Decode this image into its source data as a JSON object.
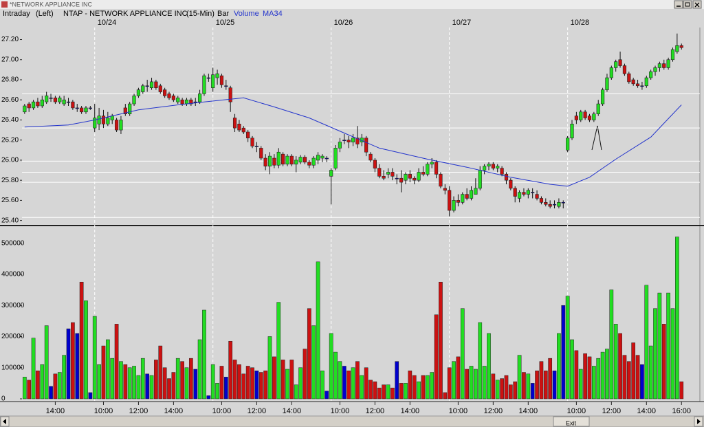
{
  "window_title": "*NETWORK APPLIANCE INC",
  "scrollbar_label": "Exit",
  "chart_data": [
    {
      "type": "candlestick",
      "label": "Intraday",
      "side": "(Left)",
      "title": "NTAP - NETWORK APPLIANCE INC",
      "interval": "(15-Min)",
      "style": "Bar",
      "up_color": "#22dd22",
      "down_color": "#cc1111",
      "flat_color": "#0000cc",
      "xlim": [
        -0.6,
        154.2
      ],
      "ylim": [
        25.37,
        27.32
      ],
      "yticks": [
        {
          "value": 25.4,
          "label": "25.40"
        },
        {
          "value": 25.6,
          "label": "25.60"
        },
        {
          "value": 25.8,
          "label": "25.80"
        },
        {
          "value": 26.0,
          "label": "26.00"
        },
        {
          "value": 26.2,
          "label": "26.20"
        },
        {
          "value": 26.4,
          "label": "26.40"
        },
        {
          "value": 26.6,
          "label": "26.60"
        },
        {
          "value": 26.8,
          "label": "26.80"
        },
        {
          "value": 27.0,
          "label": "27.00"
        },
        {
          "value": 27.2,
          "label": "27.20"
        }
      ],
      "levels": [
        26.66,
        26.32,
        25.99,
        25.88,
        25.78,
        25.43
      ],
      "level_color": "#ffffff",
      "sessions": [
        {
          "value": 16,
          "label": "10/24"
        },
        {
          "value": 43,
          "label": "10/25"
        },
        {
          "value": 70,
          "label": "10/26"
        },
        {
          "value": 97,
          "label": "10/27"
        },
        {
          "value": 124,
          "label": "10/28"
        }
      ],
      "open": [
        26.48,
        26.56,
        26.52,
        26.58,
        26.54,
        26.58,
        26.62,
        26.62,
        26.58,
        26.56,
        26.58,
        26.58,
        26.52,
        26.52,
        26.48,
        26.52,
        26.32,
        26.36,
        26.44,
        26.36,
        26.4,
        26.4,
        26.3,
        26.52,
        26.46,
        26.56,
        26.64,
        26.68,
        26.74,
        26.72,
        26.78,
        26.74,
        26.7,
        26.66,
        26.64,
        26.58,
        26.6,
        26.56,
        26.6,
        26.58,
        26.58,
        26.66,
        26.82,
        26.72,
        26.82,
        26.84,
        26.74,
        26.72,
        26.42,
        26.36,
        26.32,
        26.28,
        26.22,
        26.14,
        26.12,
        26.02,
        25.94,
        26.02,
        25.95,
        26.06,
        25.96,
        26.04,
        25.96,
        25.98,
        26.03,
        25.98,
        25.95,
        26.0,
        26.02,
        26.02,
        25.84,
        25.92,
        26.12,
        26.2,
        26.2,
        26.18,
        26.22,
        26.18,
        26.22,
        26.06,
        26.0,
        25.92,
        25.84,
        25.86,
        25.88,
        25.82,
        25.82,
        25.8,
        25.86,
        25.82,
        25.8,
        25.88,
        25.86,
        25.96,
        25.98,
        25.86,
        25.72,
        25.7,
        25.5,
        25.6,
        25.58,
        25.66,
        25.62,
        25.66,
        25.72,
        25.9,
        25.94,
        25.96,
        25.92,
        25.92,
        25.86,
        25.8,
        25.72,
        25.62,
        25.68,
        25.66,
        25.68,
        25.66,
        25.62,
        25.58,
        25.56,
        25.56,
        25.54,
        25.58,
        26.1,
        26.22,
        26.44,
        26.4,
        26.48,
        26.44,
        26.4,
        26.46,
        26.56,
        26.7,
        26.82,
        26.92,
        27.0,
        26.94,
        26.86,
        26.8,
        26.76,
        26.74,
        26.74,
        26.82,
        26.88,
        26.92,
        26.96,
        26.92,
        27.0,
        27.08,
        27.14
      ],
      "high": [
        26.56,
        26.58,
        26.6,
        26.62,
        26.64,
        26.68,
        26.66,
        26.64,
        26.64,
        26.64,
        26.62,
        26.6,
        26.56,
        26.54,
        26.54,
        26.54,
        26.56,
        26.52,
        26.5,
        26.48,
        26.46,
        26.42,
        26.44,
        26.56,
        26.58,
        26.66,
        26.72,
        26.76,
        26.8,
        26.82,
        26.8,
        26.76,
        26.72,
        26.68,
        26.66,
        26.64,
        26.62,
        26.62,
        26.62,
        26.62,
        26.7,
        26.86,
        26.86,
        26.92,
        26.9,
        26.86,
        26.8,
        26.74,
        26.46,
        26.4,
        26.34,
        26.3,
        26.24,
        26.18,
        26.14,
        26.06,
        26.08,
        26.06,
        26.12,
        26.08,
        26.06,
        26.06,
        26.04,
        26.05,
        26.05,
        26.0,
        26.04,
        26.08,
        26.06,
        26.04,
        25.92,
        26.15,
        26.22,
        26.26,
        26.24,
        26.26,
        26.34,
        26.26,
        26.24,
        26.08,
        26.02,
        25.96,
        25.9,
        25.92,
        25.92,
        25.86,
        25.9,
        25.88,
        25.9,
        25.84,
        25.92,
        25.94,
        25.98,
        26.02,
        26.0,
        25.88,
        25.76,
        25.74,
        25.64,
        25.66,
        25.68,
        25.72,
        25.74,
        25.82,
        25.94,
        25.96,
        25.98,
        25.98,
        25.96,
        25.94,
        25.88,
        25.82,
        25.74,
        25.7,
        25.72,
        25.72,
        25.72,
        25.7,
        25.64,
        25.62,
        25.6,
        25.6,
        25.62,
        25.6,
        26.24,
        26.4,
        26.48,
        26.5,
        26.5,
        26.46,
        26.48,
        26.6,
        26.72,
        26.86,
        26.94,
        27.0,
        27.08,
        26.96,
        26.88,
        26.82,
        26.8,
        26.78,
        26.84,
        26.9,
        26.94,
        26.98,
        27.0,
        27.02,
        27.12,
        27.26,
        27.16
      ],
      "low": [
        26.46,
        26.48,
        26.5,
        26.52,
        26.52,
        26.56,
        26.58,
        26.56,
        26.56,
        26.54,
        26.54,
        26.5,
        26.48,
        26.46,
        26.46,
        26.5,
        26.28,
        26.3,
        26.32,
        26.34,
        26.36,
        26.28,
        26.26,
        26.44,
        26.44,
        26.54,
        26.62,
        26.66,
        26.68,
        26.7,
        26.7,
        26.66,
        26.62,
        26.6,
        26.58,
        26.56,
        26.54,
        26.54,
        26.54,
        26.54,
        26.56,
        26.64,
        26.78,
        26.68,
        26.75,
        26.72,
        26.7,
        26.48,
        26.28,
        26.28,
        26.26,
        26.18,
        26.12,
        26.08,
        26.0,
        25.9,
        25.86,
        25.92,
        25.92,
        25.94,
        25.94,
        25.94,
        25.88,
        25.96,
        25.96,
        25.92,
        25.92,
        25.96,
        25.98,
        25.98,
        25.56,
        25.9,
        26.08,
        26.16,
        26.12,
        26.14,
        26.12,
        26.14,
        26.04,
        25.98,
        25.88,
        25.82,
        25.8,
        25.82,
        25.8,
        25.76,
        25.68,
        25.76,
        25.78,
        25.76,
        25.78,
        25.84,
        25.84,
        25.92,
        25.82,
        25.72,
        25.66,
        25.44,
        25.48,
        25.54,
        25.56,
        25.6,
        25.6,
        25.66,
        25.7,
        25.86,
        25.9,
        25.9,
        25.88,
        25.84,
        25.76,
        25.7,
        25.58,
        25.58,
        25.64,
        25.62,
        25.62,
        25.6,
        25.56,
        25.54,
        25.52,
        25.52,
        25.52,
        25.52,
        26.08,
        26.2,
        26.36,
        26.38,
        26.4,
        26.38,
        26.38,
        26.44,
        26.54,
        26.68,
        26.8,
        26.88,
        26.92,
        26.84,
        26.76,
        26.74,
        26.72,
        26.7,
        26.72,
        26.8,
        26.84,
        26.88,
        26.9,
        26.9,
        26.98,
        27.06,
        27.1
      ],
      "close": [
        26.54,
        26.52,
        26.58,
        26.54,
        26.6,
        26.64,
        26.62,
        26.58,
        26.62,
        26.6,
        26.58,
        26.52,
        26.52,
        26.48,
        26.52,
        26.52,
        26.42,
        26.44,
        26.36,
        26.42,
        26.44,
        26.3,
        26.4,
        26.46,
        26.56,
        26.64,
        26.7,
        26.74,
        26.74,
        26.78,
        26.72,
        26.68,
        26.64,
        26.62,
        26.6,
        26.62,
        26.56,
        26.6,
        26.56,
        26.58,
        26.66,
        26.84,
        26.82,
        26.85,
        26.86,
        26.75,
        26.74,
        26.58,
        26.32,
        26.3,
        26.28,
        26.22,
        26.14,
        26.14,
        26.02,
        25.94,
        26.04,
        25.95,
        26.08,
        25.96,
        26.04,
        25.96,
        26.0,
        26.03,
        25.98,
        25.95,
        26.02,
        26.05,
        26.04,
        26.02,
        25.9,
        26.12,
        26.18,
        26.2,
        26.18,
        26.22,
        26.16,
        26.22,
        26.08,
        26.0,
        25.92,
        25.84,
        25.82,
        25.88,
        25.84,
        25.82,
        25.78,
        25.86,
        25.82,
        25.8,
        25.88,
        25.86,
        25.96,
        25.98,
        25.86,
        25.74,
        25.7,
        25.5,
        25.6,
        25.58,
        25.66,
        25.62,
        25.7,
        25.72,
        25.9,
        25.94,
        25.96,
        25.92,
        25.94,
        25.86,
        25.8,
        25.72,
        25.64,
        25.68,
        25.66,
        25.7,
        25.68,
        25.62,
        25.58,
        25.56,
        25.54,
        25.56,
        25.58,
        25.58,
        26.22,
        26.36,
        26.4,
        26.48,
        26.42,
        26.4,
        26.46,
        26.56,
        26.7,
        26.82,
        26.92,
        26.98,
        26.94,
        26.86,
        26.78,
        26.76,
        26.74,
        26.74,
        26.82,
        26.88,
        26.92,
        26.96,
        26.92,
        27.0,
        27.1,
        27.14,
        27.12
      ],
      "ma": {
        "name": "MA34",
        "color": "#2233cc",
        "x": [
          0,
          10,
          16,
          26,
          35,
          41,
          50,
          57,
          65,
          73,
          81,
          92,
          101,
          111,
          120,
          124,
          129,
          135,
          143,
          150
        ],
        "values": [
          26.33,
          26.35,
          26.4,
          26.5,
          26.55,
          26.58,
          26.62,
          26.53,
          26.42,
          26.27,
          26.12,
          26.01,
          25.93,
          25.83,
          25.76,
          25.74,
          25.83,
          26.01,
          26.23,
          26.55
        ]
      }
    },
    {
      "type": "bar",
      "title": "Volume",
      "title_color": "#2233cc",
      "xlim": [
        -0.6,
        154.2
      ],
      "ylim": [
        0,
        550000
      ],
      "yticks": [
        0,
        100000,
        200000,
        300000,
        400000,
        500000
      ],
      "xticks": [
        {
          "value": 7,
          "label": "14:00"
        },
        {
          "value": 18,
          "label": "10:00"
        },
        {
          "value": 26,
          "label": "12:00"
        },
        {
          "value": 34,
          "label": "14:00"
        },
        {
          "value": 45,
          "label": "10:00"
        },
        {
          "value": 53,
          "label": "12:00"
        },
        {
          "value": 61,
          "label": "14:00"
        },
        {
          "value": 72,
          "label": "10:00"
        },
        {
          "value": 80,
          "label": "12:00"
        },
        {
          "value": 88,
          "label": "14:00"
        },
        {
          "value": 99,
          "label": "10:00"
        },
        {
          "value": 107,
          "label": "12:00"
        },
        {
          "value": 115,
          "label": "14:00"
        },
        {
          "value": 126,
          "label": "10:00"
        },
        {
          "value": 134,
          "label": "12:00"
        },
        {
          "value": 142,
          "label": "14:00"
        },
        {
          "value": 150,
          "label": "16:00"
        }
      ],
      "values": [
        70000,
        60000,
        195000,
        90000,
        110000,
        235000,
        40000,
        80000,
        85000,
        140000,
        225000,
        245000,
        210000,
        375000,
        315000,
        20000,
        265000,
        110000,
        170000,
        190000,
        130000,
        240000,
        120000,
        110000,
        100000,
        105000,
        75000,
        130000,
        80000,
        75000,
        125000,
        170000,
        100000,
        65000,
        85000,
        130000,
        120000,
        100000,
        130000,
        95000,
        190000,
        285000,
        10000,
        110000,
        50000,
        105000,
        70000,
        185000,
        125000,
        110000,
        80000,
        105000,
        100000,
        90000,
        85000,
        90000,
        200000,
        135000,
        310000,
        125000,
        95000,
        125000,
        45000,
        100000,
        160000,
        290000,
        235000,
        440000,
        90000,
        25000,
        210000,
        150000,
        120000,
        105000,
        90000,
        100000,
        120000,
        75000,
        100000,
        60000,
        55000,
        35000,
        45000,
        45000,
        35000,
        120000,
        50000,
        50000,
        90000,
        75000,
        55000,
        75000,
        75000,
        85000,
        270000,
        375000,
        20000,
        100000,
        120000,
        135000,
        290000,
        95000,
        105000,
        95000,
        245000,
        105000,
        210000,
        80000,
        60000,
        65000,
        75000,
        45000,
        55000,
        140000,
        85000,
        80000,
        50000,
        90000,
        120000,
        90000,
        130000,
        90000,
        210000,
        300000,
        330000,
        190000,
        155000,
        95000,
        145000,
        135000,
        105000,
        130000,
        150000,
        160000,
        350000,
        240000,
        210000,
        140000,
        120000,
        180000,
        140000,
        110000,
        365000,
        170000,
        290000,
        340000,
        240000,
        340000,
        290000,
        520000,
        55000
      ]
    }
  ]
}
